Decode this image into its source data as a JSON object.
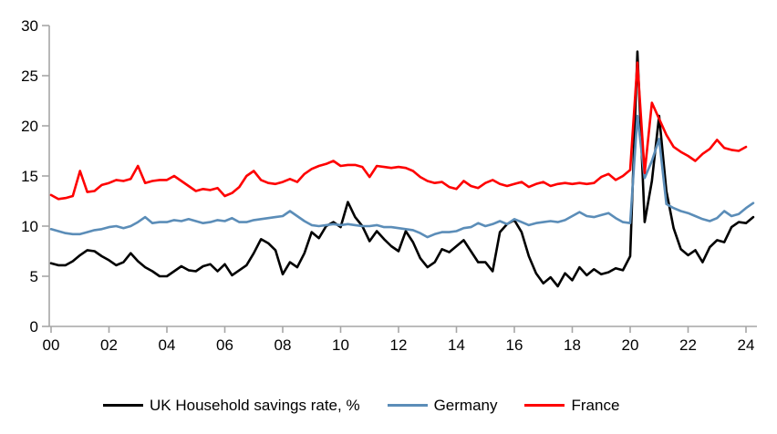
{
  "chart_data": {
    "type": "line",
    "title": "",
    "x_unit": "quarterly",
    "x_start_year": 2000,
    "x_end_year": 2024,
    "x_tick_labels": [
      "00",
      "02",
      "04",
      "06",
      "08",
      "10",
      "12",
      "14",
      "16",
      "18",
      "20",
      "22",
      "24"
    ],
    "y_ticks": [
      0,
      5,
      10,
      15,
      20,
      25,
      30
    ],
    "y_tick_labels": [
      "0",
      "5",
      "10",
      "15",
      "20",
      "25",
      "30"
    ],
    "ylim": [
      0,
      30
    ],
    "grid": false,
    "legend_position": "bottom",
    "axis_color": "#a6a6a6",
    "series": [
      {
        "name": "UK Household savings rate, %",
        "color": "#000000",
        "values": [
          6.3,
          6.1,
          6.1,
          6.5,
          7.1,
          7.6,
          7.5,
          7.0,
          6.6,
          6.1,
          6.4,
          7.3,
          6.5,
          5.9,
          5.5,
          5.0,
          5.0,
          5.5,
          6.0,
          5.6,
          5.5,
          6.0,
          6.2,
          5.5,
          6.2,
          5.1,
          5.6,
          6.1,
          7.3,
          8.7,
          8.3,
          7.6,
          5.2,
          6.4,
          5.9,
          7.3,
          9.4,
          8.8,
          10.0,
          10.4,
          9.9,
          12.4,
          10.9,
          10.0,
          8.5,
          9.5,
          8.7,
          8.0,
          7.5,
          9.5,
          8.4,
          6.8,
          5.9,
          6.4,
          7.7,
          7.4,
          8.0,
          8.6,
          7.5,
          6.4,
          6.4,
          5.5,
          9.4,
          10.2,
          10.6,
          9.4,
          7.0,
          5.3,
          4.3,
          4.9,
          4.0,
          5.3,
          4.6,
          5.9,
          5.1,
          5.7,
          5.2,
          5.4,
          5.8,
          5.6,
          7.0,
          27.4,
          10.4,
          14.5,
          21.0,
          13.5,
          9.8,
          7.7,
          7.1,
          7.6,
          6.4,
          7.9,
          8.6,
          8.4,
          9.9,
          10.4,
          10.3,
          10.9
        ]
      },
      {
        "name": "Germany",
        "color": "#5b8db8",
        "values": [
          9.7,
          9.5,
          9.3,
          9.2,
          9.2,
          9.4,
          9.6,
          9.7,
          9.9,
          10.0,
          9.8,
          10.0,
          10.4,
          10.9,
          10.3,
          10.4,
          10.4,
          10.6,
          10.5,
          10.7,
          10.5,
          10.3,
          10.4,
          10.6,
          10.5,
          10.8,
          10.4,
          10.4,
          10.6,
          10.7,
          10.8,
          10.9,
          11.0,
          11.5,
          11.0,
          10.5,
          10.1,
          10.0,
          10.1,
          10.2,
          10.1,
          10.2,
          10.1,
          10.0,
          10.0,
          10.1,
          9.9,
          9.9,
          9.8,
          9.7,
          9.6,
          9.3,
          8.9,
          9.2,
          9.4,
          9.4,
          9.5,
          9.8,
          9.9,
          10.3,
          10.0,
          10.2,
          10.5,
          10.2,
          10.7,
          10.4,
          10.1,
          10.3,
          10.4,
          10.5,
          10.4,
          10.6,
          11.0,
          11.4,
          11.0,
          10.9,
          11.1,
          11.3,
          10.8,
          10.4,
          10.3,
          21.0,
          14.8,
          16.5,
          18.7,
          12.2,
          11.8,
          11.5,
          11.3,
          11.0,
          10.7,
          10.5,
          10.8,
          11.5,
          11.0,
          11.2,
          11.8,
          12.3
        ]
      },
      {
        "name": "France",
        "color": "#fe0000",
        "values": [
          13.1,
          12.7,
          12.8,
          13.0,
          15.5,
          13.4,
          13.5,
          14.1,
          14.3,
          14.6,
          14.5,
          14.7,
          16.0,
          14.3,
          14.5,
          14.6,
          14.6,
          15.0,
          14.5,
          14.0,
          13.5,
          13.7,
          13.6,
          13.8,
          13.0,
          13.3,
          13.9,
          15.0,
          15.5,
          14.6,
          14.3,
          14.2,
          14.4,
          14.7,
          14.4,
          15.2,
          15.7,
          16.0,
          16.2,
          16.5,
          16.0,
          16.1,
          16.1,
          15.9,
          14.9,
          16.0,
          15.9,
          15.8,
          15.9,
          15.8,
          15.5,
          14.9,
          14.5,
          14.3,
          14.4,
          13.9,
          13.7,
          14.5,
          14.0,
          13.8,
          14.3,
          14.6,
          14.2,
          14.0,
          14.2,
          14.4,
          13.9,
          14.2,
          14.4,
          14.0,
          14.2,
          14.3,
          14.2,
          14.3,
          14.2,
          14.3,
          14.9,
          15.2,
          14.6,
          15.0,
          15.6,
          26.3,
          15.3,
          22.3,
          20.7,
          19.1,
          17.9,
          17.4,
          17.0,
          16.5,
          17.2,
          17.7,
          18.6,
          17.8,
          17.6,
          17.5,
          17.9,
          null
        ]
      }
    ]
  },
  "legend": {
    "items": [
      {
        "label": "UK Household savings rate, %"
      },
      {
        "label": "Germany"
      },
      {
        "label": "France"
      }
    ]
  }
}
